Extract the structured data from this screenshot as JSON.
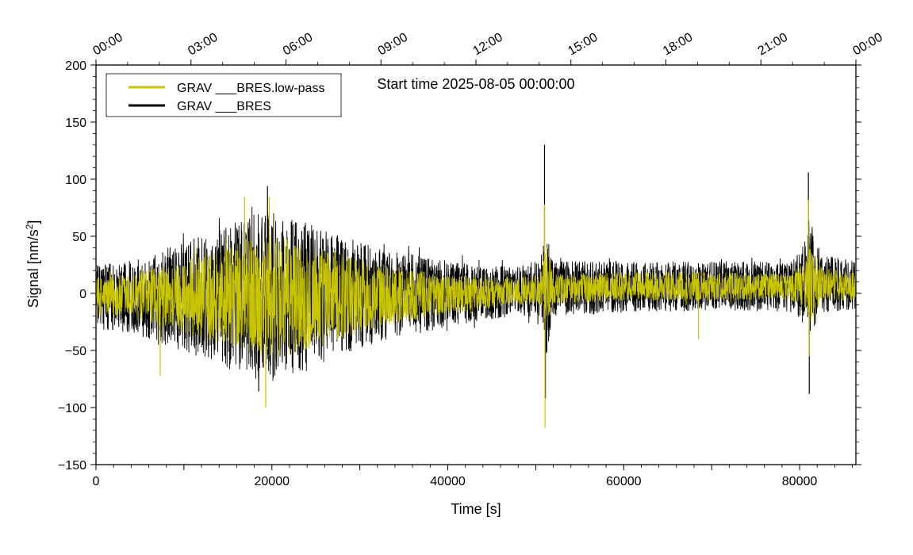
{
  "chart_data": {
    "type": "line",
    "title": "",
    "annotation": "Start time 2025-08-05 00:00:00",
    "xlabel": "Time [s]",
    "ylabel": "Signal [nm/s",
    "ylabel_sup": "2",
    "ylabel_tail": "]",
    "xlim": [
      0,
      86400
    ],
    "ylim": [
      -150,
      200
    ],
    "x_ticks": [
      0,
      20000,
      40000,
      60000,
      80000
    ],
    "x_tick_labels": [
      "0",
      "20000",
      "40000",
      "60000",
      "80000"
    ],
    "y_ticks": [
      -150,
      -100,
      -50,
      0,
      50,
      100,
      150,
      200
    ],
    "y_tick_labels": [
      "−150",
      "−100",
      "−50",
      "0",
      "50",
      "100",
      "150",
      "200"
    ],
    "top_axis": {
      "ticks": [
        0,
        10800,
        21600,
        32400,
        43200,
        54000,
        64800,
        75600,
        86400
      ],
      "labels": [
        "00:00",
        "03:00",
        "06:00",
        "09:00",
        "12:00",
        "15:00",
        "18:00",
        "21:00",
        "00:00"
      ]
    },
    "grid": false,
    "legend_position": "top-left",
    "series": [
      {
        "name": "GRAV ___BRES.low-pass",
        "color": "#c8c400",
        "description": "Low-pass filtered gravity residual noise",
        "envelope": {
          "x": [
            0,
            4000,
            9000,
            14000,
            18000,
            20000,
            24000,
            28000,
            32000,
            38000,
            44000,
            48000,
            50500,
            51200,
            52000,
            56000,
            62000,
            68000,
            74000,
            79000,
            80800,
            81200,
            82500,
            86400
          ],
          "amplitude": [
            17,
            20,
            30,
            42,
            52,
            55,
            47,
            38,
            28,
            20,
            14,
            12,
            14,
            40,
            13,
            13,
            13,
            13,
            12,
            12,
            22,
            35,
            15,
            12
          ],
          "offset": [
            -3,
            -3,
            -3,
            -3,
            -3,
            -3,
            -3,
            -2,
            -2,
            -1,
            0,
            2,
            4,
            4,
            4,
            5,
            6,
            6,
            6,
            6,
            8,
            10,
            8,
            6
          ]
        },
        "spikes": [
          {
            "x": 7300,
            "y": -72
          },
          {
            "x": 16900,
            "y": 85
          },
          {
            "x": 19300,
            "y": -100
          },
          {
            "x": 19700,
            "y": 84
          },
          {
            "x": 51000,
            "y": 78
          },
          {
            "x": 51050,
            "y": -118
          },
          {
            "x": 68500,
            "y": -40
          },
          {
            "x": 81000,
            "y": 82
          },
          {
            "x": 81100,
            "y": -55
          }
        ]
      },
      {
        "name": "GRAV ___BRES",
        "color": "#000000",
        "description": "Raw gravity residual signal",
        "envelope": {
          "x": [
            0,
            4000,
            9000,
            14000,
            18000,
            20000,
            24000,
            28000,
            32000,
            38000,
            44000,
            48000,
            50500,
            51200,
            52000,
            56000,
            62000,
            68000,
            74000,
            79000,
            80800,
            81200,
            82500,
            86400
          ],
          "amplitude": [
            28,
            32,
            45,
            60,
            72,
            75,
            65,
            52,
            42,
            32,
            24,
            22,
            26,
            60,
            24,
            24,
            22,
            22,
            22,
            22,
            40,
            55,
            26,
            22
          ],
          "offset": [
            -3,
            -3,
            -3,
            -3,
            -3,
            -3,
            -3,
            -2,
            -2,
            -1,
            0,
            2,
            4,
            4,
            4,
            5,
            6,
            6,
            6,
            6,
            8,
            10,
            8,
            6
          ]
        },
        "spikes": [
          {
            "x": 19500,
            "y": 94
          },
          {
            "x": 51000,
            "y": 130
          },
          {
            "x": 51100,
            "y": -92
          },
          {
            "x": 81000,
            "y": 106
          },
          {
            "x": 81100,
            "y": -88
          },
          {
            "x": 18500,
            "y": -86
          }
        ]
      }
    ]
  }
}
